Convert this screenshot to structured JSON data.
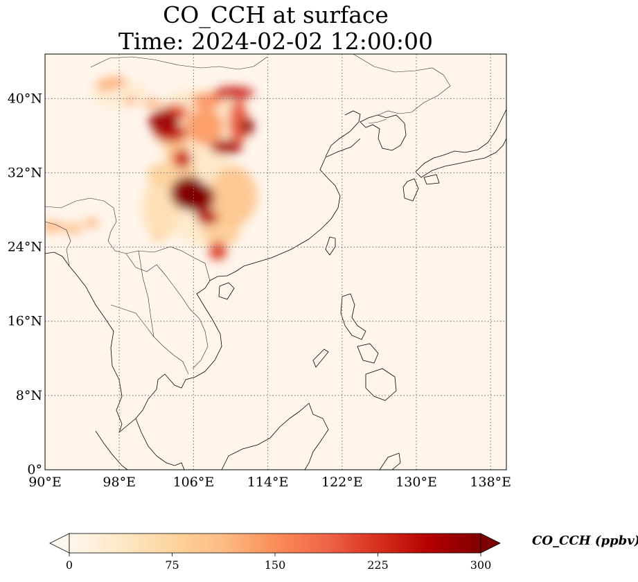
{
  "chart_data": {
    "type": "heatmap",
    "title_line1": "CO_CCH at surface",
    "title_line2": "Time: 2024-02-02 12:00:00",
    "variable": "CO_CCH",
    "units": "ppbv",
    "colorbar_label": "CO_CCH (ppbv)",
    "colormap": "OrRd",
    "colorbar_extend": "both",
    "value_range": [
      0,
      300
    ],
    "colorbar_ticks": [
      {
        "value": 0,
        "label": "0"
      },
      {
        "value": 75,
        "label": "75"
      },
      {
        "value": 150,
        "label": "150"
      },
      {
        "value": 225,
        "label": "225"
      },
      {
        "value": 300,
        "label": "300"
      }
    ],
    "lon_range": [
      90,
      139.7
    ],
    "lat_range": [
      0,
      44.8
    ],
    "x_ticks": [
      {
        "value": 90,
        "label": "90°E"
      },
      {
        "value": 98,
        "label": "98°E"
      },
      {
        "value": 106,
        "label": "106°E"
      },
      {
        "value": 114,
        "label": "114°E"
      },
      {
        "value": 122,
        "label": "122°E"
      },
      {
        "value": 130,
        "label": "130°E"
      },
      {
        "value": 138,
        "label": "138°E"
      }
    ],
    "y_ticks": [
      {
        "value": 0,
        "label": "0°"
      },
      {
        "value": 8,
        "label": "8°N"
      },
      {
        "value": 16,
        "label": "16°N"
      },
      {
        "value": 24,
        "label": "24°N"
      },
      {
        "value": 32,
        "label": "32°N"
      },
      {
        "value": 40,
        "label": "40°N"
      }
    ],
    "grid": true,
    "plumes": [
      {
        "lon": 105.5,
        "lat": 29.8,
        "rlon": 2.0,
        "rlat": 1.8,
        "value": 300
      },
      {
        "lon": 106.5,
        "lat": 29.3,
        "rlon": 1.8,
        "rlat": 1.6,
        "value": 290
      },
      {
        "lon": 107.5,
        "lat": 27.2,
        "rlon": 1.2,
        "rlat": 0.8,
        "value": 260
      },
      {
        "lon": 104.8,
        "lat": 33.5,
        "rlon": 1.0,
        "rlat": 1.0,
        "value": 240
      },
      {
        "lon": 110.3,
        "lat": 29.5,
        "rlon": 2.6,
        "rlat": 3.2,
        "value": 95
      },
      {
        "lon": 108.6,
        "lat": 23.6,
        "rlon": 1.0,
        "rlat": 1.0,
        "value": 220
      },
      {
        "lon": 109.0,
        "lat": 25.8,
        "rlon": 2.0,
        "rlat": 1.8,
        "value": 85
      },
      {
        "lon": 102.8,
        "lat": 37.5,
        "rlon": 1.6,
        "rlat": 1.3,
        "value": 280
      },
      {
        "lon": 103.5,
        "lat": 36.3,
        "rlon": 1.8,
        "rlat": 1.0,
        "value": 240
      },
      {
        "lon": 104.0,
        "lat": 38.5,
        "rlon": 1.4,
        "rlat": 0.9,
        "value": 210
      },
      {
        "lon": 107.2,
        "lat": 37.0,
        "rlon": 2.0,
        "rlat": 2.0,
        "value": 140
      },
      {
        "lon": 109.5,
        "lat": 34.8,
        "rlon": 1.7,
        "rlat": 0.8,
        "value": 270
      },
      {
        "lon": 110.8,
        "lat": 37.5,
        "rlon": 1.0,
        "rlat": 2.4,
        "value": 200
      },
      {
        "lon": 111.8,
        "lat": 37.0,
        "rlon": 0.7,
        "rlat": 0.9,
        "value": 290
      },
      {
        "lon": 110.3,
        "lat": 40.6,
        "rlon": 2.2,
        "rlat": 0.7,
        "value": 240
      },
      {
        "lon": 107.5,
        "lat": 39.8,
        "rlon": 1.7,
        "rlat": 0.8,
        "value": 150
      },
      {
        "lon": 101.5,
        "lat": 39.5,
        "rlon": 1.0,
        "rlat": 0.5,
        "value": 120
      },
      {
        "lon": 96.5,
        "lat": 41.5,
        "rlon": 1.0,
        "rlat": 0.7,
        "value": 120
      },
      {
        "lon": 97.8,
        "lat": 41.8,
        "rlon": 0.9,
        "rlat": 0.6,
        "value": 130
      },
      {
        "lon": 99.2,
        "lat": 39.8,
        "rlon": 0.6,
        "rlat": 0.4,
        "value": 140
      },
      {
        "lon": 103.8,
        "lat": 31.8,
        "rlon": 2.8,
        "rlat": 1.5,
        "value": 80
      },
      {
        "lon": 102.5,
        "lat": 28.2,
        "rlon": 2.0,
        "rlat": 3.5,
        "value": 55
      },
      {
        "lon": 104.2,
        "lat": 34.8,
        "rlon": 1.2,
        "rlat": 2.2,
        "value": 100
      },
      {
        "lon": 90.8,
        "lat": 26.2,
        "rlon": 1.2,
        "rlat": 0.6,
        "value": 120
      },
      {
        "lon": 93.0,
        "lat": 26.0,
        "rlon": 1.0,
        "rlat": 0.6,
        "value": 110
      },
      {
        "lon": 95.0,
        "lat": 26.6,
        "rlon": 0.8,
        "rlat": 0.5,
        "value": 120
      },
      {
        "lon": 102.0,
        "lat": 25.0,
        "rlon": 0.3,
        "rlat": 0.5,
        "value": 120
      },
      {
        "lon": 106.5,
        "lat": 37.0,
        "rlon": 5.0,
        "rlat": 4.0,
        "value": 40
      },
      {
        "lon": 107.5,
        "lat": 29.0,
        "rlon": 4.5,
        "rlat": 5.0,
        "value": 35
      },
      {
        "lon": 98.0,
        "lat": 40.5,
        "rlon": 3.0,
        "rlat": 1.5,
        "value": 30
      }
    ]
  }
}
